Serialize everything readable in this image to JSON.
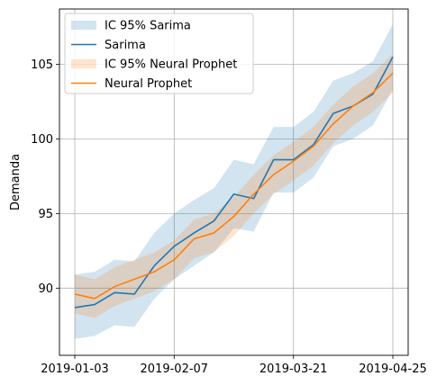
{
  "chart_data": {
    "type": "line",
    "title": "",
    "xlabel": "",
    "ylabel": "Demanda",
    "grid": true,
    "legend_position": "top-left",
    "x": [
      "2019-01-03",
      "2019-01-10",
      "2019-01-17",
      "2019-01-24",
      "2019-01-31",
      "2019-02-07",
      "2019-02-14",
      "2019-02-21",
      "2019-02-28",
      "2019-03-07",
      "2019-03-14",
      "2019-03-21",
      "2019-03-28",
      "2019-04-04",
      "2019-04-11",
      "2019-04-18",
      "2019-04-25"
    ],
    "x_ticks": [
      "2019-01-03",
      "2019-02-07",
      "2019-03-21",
      "2019-04-25"
    ],
    "x_range": [
      "2019-01-03",
      "2019-04-25"
    ],
    "ylim": [
      85.5,
      108.7
    ],
    "y_ticks": [
      90,
      95,
      100,
      105
    ],
    "series": [
      {
        "name": "Sarima",
        "kind": "line",
        "color": "#1f77b4",
        "values": [
          88.7,
          88.9,
          89.7,
          89.6,
          91.5,
          92.8,
          93.7,
          94.5,
          96.3,
          96.0,
          98.6,
          98.6,
          99.6,
          101.7,
          102.2,
          103.0,
          105.5
        ]
      },
      {
        "name": "IC 95% Sarima",
        "kind": "band",
        "color": "#1f77b4",
        "opacity": 0.2,
        "lower": [
          86.6,
          86.8,
          87.5,
          87.4,
          89.3,
          90.6,
          91.5,
          92.4,
          94.0,
          93.8,
          96.4,
          96.4,
          97.4,
          99.5,
          100.0,
          100.9,
          103.3
        ],
        "upper": [
          90.9,
          91.1,
          91.9,
          91.8,
          93.7,
          95.0,
          95.9,
          96.7,
          98.6,
          98.3,
          100.8,
          100.8,
          101.8,
          103.9,
          104.4,
          105.2,
          107.7
        ]
      },
      {
        "name": "Neural Prophet",
        "kind": "line",
        "color": "#ff7f0e",
        "values": [
          89.6,
          89.3,
          90.1,
          90.6,
          91.1,
          91.9,
          93.3,
          93.7,
          94.8,
          96.3,
          97.6,
          98.5,
          99.5,
          101.0,
          102.2,
          103.1,
          104.4
        ]
      },
      {
        "name": "IC 95% Neural Prophet",
        "kind": "band",
        "color": "#ff7f0e",
        "opacity": 0.2,
        "lower": [
          88.3,
          88.0,
          88.8,
          89.3,
          89.8,
          90.6,
          92.0,
          92.4,
          93.5,
          95.0,
          96.3,
          97.2,
          98.2,
          99.7,
          100.9,
          101.8,
          103.1
        ],
        "upper": [
          90.9,
          90.6,
          91.4,
          91.9,
          92.4,
          93.2,
          94.6,
          95.0,
          96.1,
          97.6,
          98.9,
          99.8,
          100.8,
          102.3,
          103.5,
          104.4,
          105.7
        ]
      }
    ],
    "legend": [
      {
        "label": "IC 95% Sarima",
        "type": "band",
        "color": "#1f77b4"
      },
      {
        "label": "Sarima",
        "type": "line",
        "color": "#1f77b4"
      },
      {
        "label": "IC 95% Neural Prophet",
        "type": "band",
        "color": "#ff7f0e"
      },
      {
        "label": "Neural Prophet",
        "type": "line",
        "color": "#ff7f0e"
      }
    ]
  }
}
